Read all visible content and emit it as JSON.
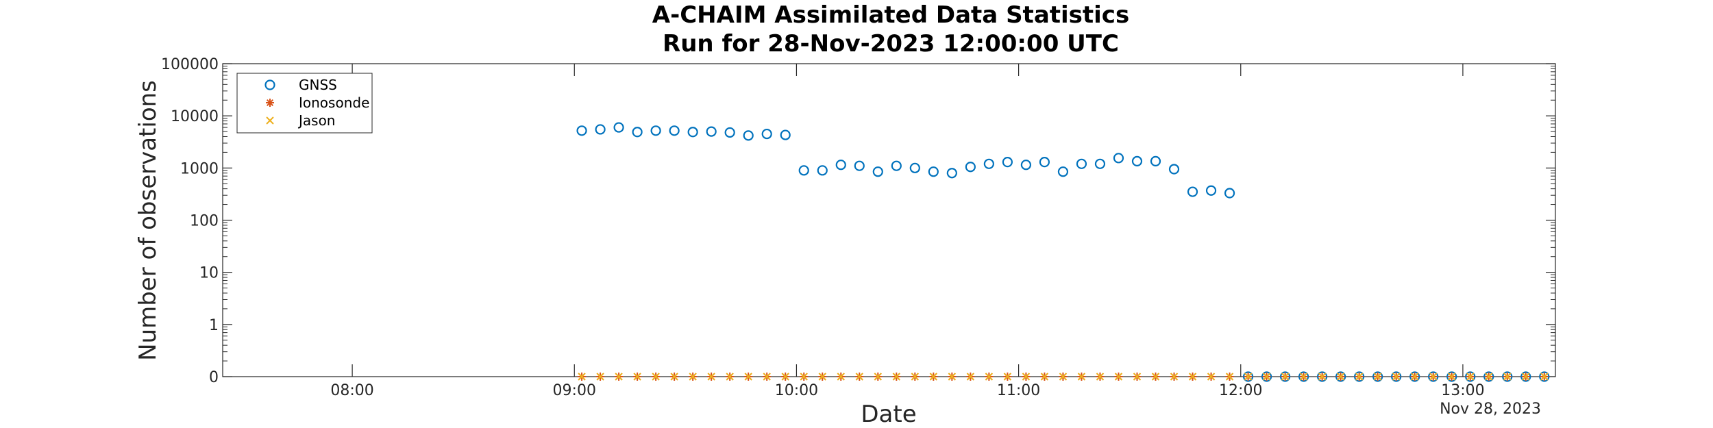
{
  "chart_data": {
    "type": "scatter",
    "title": [
      "A-CHAIM Assimilated Data Statistics",
      "Run for 28-Nov-2023 12:00:00 UTC"
    ],
    "xlabel": "Date",
    "ylabel": "Number of observations",
    "x_date_label": "Nov 28, 2023",
    "xlim": [
      "07:25",
      "13:25"
    ],
    "ylim_decades": [
      0,
      100000
    ],
    "yscale": "log",
    "y_tick_labels": [
      "0",
      "1",
      "10",
      "100",
      "1000",
      "10000",
      "100000"
    ],
    "x_ticks": [
      "08:00",
      "09:00",
      "10:00",
      "11:00",
      "12:00",
      "13:00"
    ],
    "grid": false,
    "legend_position": "top-left",
    "series": [
      {
        "name": "GNSS",
        "marker": "circle",
        "color": "#0072BD",
        "points": [
          [
            "09:02",
            5200
          ],
          [
            "09:07",
            5500
          ],
          [
            "09:12",
            6000
          ],
          [
            "09:17",
            4900
          ],
          [
            "09:22",
            5200
          ],
          [
            "09:27",
            5200
          ],
          [
            "09:32",
            4900
          ],
          [
            "09:37",
            5000
          ],
          [
            "09:42",
            4800
          ],
          [
            "09:47",
            4200
          ],
          [
            "09:52",
            4500
          ],
          [
            "09:57",
            4300
          ],
          [
            "10:02",
            900
          ],
          [
            "10:07",
            900
          ],
          [
            "10:12",
            1150
          ],
          [
            "10:17",
            1100
          ],
          [
            "10:22",
            850
          ],
          [
            "10:27",
            1100
          ],
          [
            "10:32",
            1000
          ],
          [
            "10:37",
            850
          ],
          [
            "10:42",
            800
          ],
          [
            "10:47",
            1050
          ],
          [
            "10:52",
            1200
          ],
          [
            "10:57",
            1300
          ],
          [
            "11:02",
            1150
          ],
          [
            "11:07",
            1300
          ],
          [
            "11:12",
            850
          ],
          [
            "11:17",
            1200
          ],
          [
            "11:22",
            1200
          ],
          [
            "11:27",
            1550
          ],
          [
            "11:32",
            1350
          ],
          [
            "11:37",
            1350
          ],
          [
            "11:42",
            950
          ],
          [
            "11:47",
            350
          ],
          [
            "11:52",
            370
          ],
          [
            "11:57",
            330
          ],
          [
            "12:02",
            0
          ],
          [
            "12:07",
            0
          ],
          [
            "12:12",
            0
          ],
          [
            "12:17",
            0
          ],
          [
            "12:22",
            0
          ],
          [
            "12:27",
            0
          ],
          [
            "12:32",
            0
          ],
          [
            "12:37",
            0
          ],
          [
            "12:42",
            0
          ],
          [
            "12:47",
            0
          ],
          [
            "12:52",
            0
          ],
          [
            "12:57",
            0
          ],
          [
            "13:02",
            0
          ],
          [
            "13:07",
            0
          ],
          [
            "13:12",
            0
          ],
          [
            "13:17",
            0
          ],
          [
            "13:22",
            0
          ]
        ]
      },
      {
        "name": "Ionosonde",
        "marker": "asterisk",
        "color": "#D95319",
        "points_all_zero_from": "09:02",
        "points_to": "13:22",
        "step_minutes": 5
      },
      {
        "name": "Jason",
        "marker": "x",
        "color": "#EDB120",
        "points_all_zero_from": "09:02",
        "points_to": "13:22",
        "step_minutes": 5
      }
    ]
  }
}
